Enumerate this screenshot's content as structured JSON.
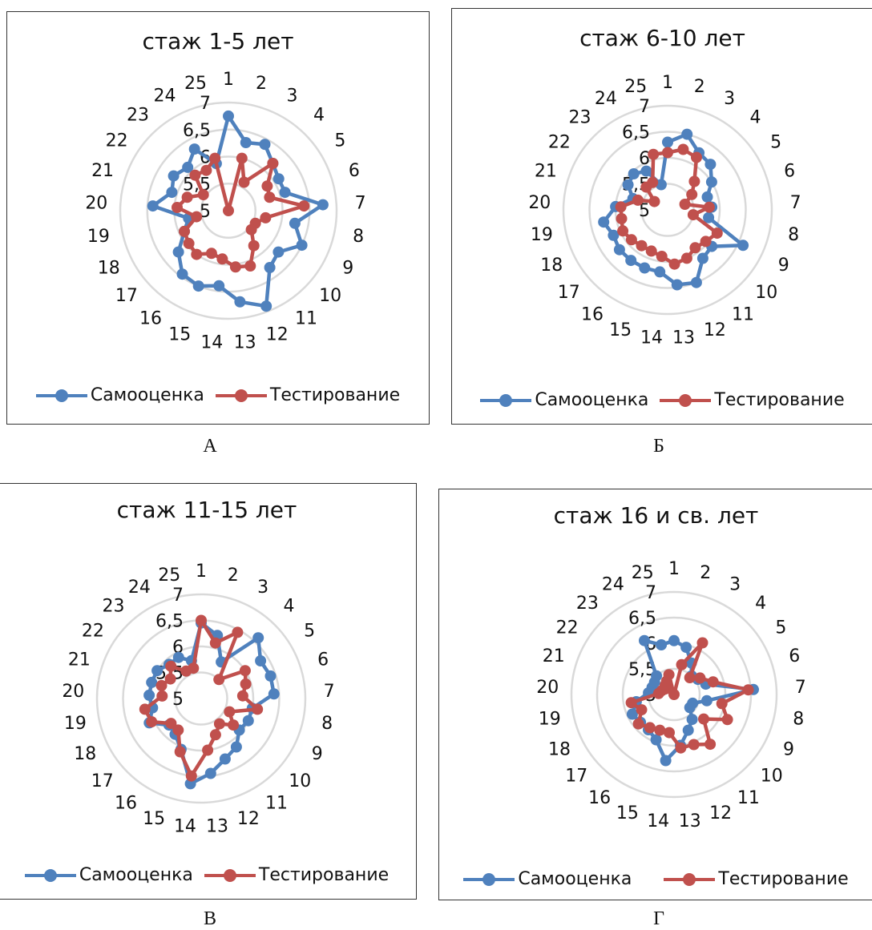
{
  "colors": {
    "self": "#4f81bd",
    "test": "#c0504d",
    "grid": "#d9d9d9",
    "text": "#111111"
  },
  "legend": {
    "self_label": "Самооценка",
    "test_label": "Тестирование"
  },
  "chart_data": [
    {
      "type": "radar",
      "caption": "А",
      "title": "стаж 1-5 лет",
      "categories": [
        "1",
        "2",
        "3",
        "4",
        "5",
        "6",
        "7",
        "8",
        "9",
        "10",
        "11",
        "12",
        "13",
        "14",
        "15",
        "16",
        "17",
        "18",
        "19",
        "20",
        "21",
        "22",
        "23",
        "24",
        "25"
      ],
      "axis_tick_labels": [
        "5",
        "5,5",
        "6",
        "6,5",
        "7"
      ],
      "rlim": [
        5,
        7
      ],
      "series": [
        {
          "name": "Самооценка",
          "values": [
            6.75,
            6.3,
            6.4,
            6.2,
            6.1,
            6.1,
            6.75,
            6.25,
            6.5,
            6.2,
            6.3,
            6.9,
            6.7,
            6.4,
            6.5,
            6.45,
            6.2,
            5.9,
            5.75,
            6.4,
            6.1,
            6.2,
            6.1,
            6.3,
            5.9
          ]
        },
        {
          "name": "Тестирование",
          "values": [
            5.0,
            6.0,
            5.6,
            6.2,
            5.85,
            5.8,
            6.4,
            5.7,
            5.55,
            5.55,
            5.8,
            6.1,
            6.05,
            5.9,
            5.85,
            6.0,
            5.95,
            5.9,
            5.6,
            5.95,
            5.8,
            5.55,
            5.9,
            5.85,
            6.0
          ]
        }
      ],
      "legend_position": "bottom"
    },
    {
      "type": "radar",
      "caption": "Б",
      "title": "стаж 6-10  лет",
      "categories": [
        "1",
        "2",
        "3",
        "4",
        "5",
        "6",
        "7",
        "8",
        "9",
        "10",
        "11",
        "12",
        "13",
        "14",
        "15",
        "16",
        "17",
        "18",
        "19",
        "20",
        "21",
        "22",
        "23",
        "24",
        "25"
      ],
      "axis_tick_labels": [
        "5",
        "5,5",
        "6",
        "6,5",
        "7"
      ],
      "rlim": [
        5,
        7
      ],
      "series": [
        {
          "name": "Самооценка",
          "values": [
            6.3,
            6.5,
            6.25,
            6.2,
            6.0,
            5.8,
            5.85,
            5.8,
            6.6,
            6.1,
            6.15,
            6.5,
            6.45,
            6.2,
            6.2,
            6.2,
            6.2,
            6.15,
            6.25,
            6.0,
            5.7,
            5.9,
            5.95,
            5.85,
            5.5
          ]
        },
        {
          "name": "Тестирование",
          "values": [
            6.1,
            6.2,
            6.15,
            5.75,
            5.55,
            5.35,
            5.8,
            5.5,
            6.05,
            5.95,
            5.9,
            6.0,
            6.05,
            5.9,
            5.85,
            5.85,
            5.9,
            5.95,
            5.9,
            5.9,
            5.6,
            5.3,
            5.6,
            5.6,
            6.1
          ]
        }
      ],
      "legend_position": "bottom"
    },
    {
      "type": "radar",
      "caption": "В",
      "title": "стаж 11-15 лет",
      "categories": [
        "1",
        "2",
        "3",
        "4",
        "5",
        "6",
        "7",
        "8",
        "9",
        "10",
        "11",
        "12",
        "13",
        "14",
        "15",
        "16",
        "17",
        "18",
        "19",
        "20",
        "21",
        "22",
        "23",
        "24",
        "25"
      ],
      "axis_tick_labels": [
        "5",
        "5,5",
        "6",
        "6,5",
        "7"
      ],
      "rlim": [
        5,
        7
      ],
      "series": [
        {
          "name": "Самооценка",
          "values": [
            6.45,
            6.25,
            5.8,
            6.6,
            6.35,
            6.4,
            6.4,
            6.0,
            6.0,
            5.95,
            6.15,
            6.25,
            6.45,
            6.65,
            6.05,
            5.85,
            5.8,
            6.1,
            5.95,
            6.0,
            6.0,
            6.0,
            5.9,
            5.9,
            5.75
          ]
        },
        {
          "name": "Тестирование",
          "values": [
            6.5,
            6.1,
            6.45,
            5.5,
            6.0,
            5.9,
            5.8,
            6.1,
            5.6,
            5.8,
            5.6,
            5.75,
            6.0,
            6.5,
            6.1,
            5.75,
            5.75,
            6.05,
            6.1,
            5.75,
            5.8,
            5.7,
            5.85,
            5.6,
            5.6
          ]
        }
      ],
      "legend_position": "bottom"
    },
    {
      "type": "radar",
      "caption": "Г",
      "title": "стаж 16 и св. лет",
      "categories": [
        "1",
        "2",
        "3",
        "4",
        "5",
        "6",
        "7",
        "8",
        "9",
        "10",
        "11",
        "12",
        "13",
        "14",
        "15",
        "16",
        "17",
        "18",
        "19",
        "20",
        "21",
        "22",
        "23",
        "24",
        "25"
      ],
      "axis_tick_labels": [
        "5",
        "5,5",
        "6",
        "6,5",
        "7"
      ],
      "rlim": [
        5,
        7
      ],
      "series": [
        {
          "name": "Самооценка",
          "values": [
            6.05,
            5.95,
            5.7,
            5.5,
            5.55,
            5.65,
            6.55,
            5.65,
            5.4,
            5.4,
            5.6,
            5.75,
            6.0,
            6.3,
            5.95,
            5.85,
            5.85,
            5.9,
            5.75,
            5.5,
            5.45,
            5.45,
            5.5,
            6.2,
            6.0
          ]
        },
        {
          "name": "Тестирование",
          "values": [
            5.0,
            5.6,
            6.15,
            5.45,
            5.6,
            5.8,
            6.45,
            5.95,
            6.15,
            5.75,
            6.2,
            6.05,
            6.05,
            5.75,
            5.75,
            5.8,
            5.9,
            5.7,
            5.85,
            5.3,
            5.25,
            5.2,
            5.25,
            5.3,
            5.4
          ]
        }
      ],
      "legend_position": "bottom"
    }
  ]
}
